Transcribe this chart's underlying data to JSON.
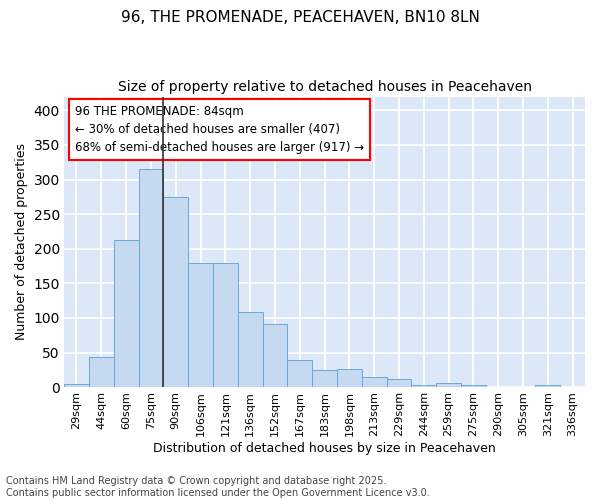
{
  "title": "96, THE PROMENADE, PEACEHAVEN, BN10 8LN",
  "subtitle": "Size of property relative to detached houses in Peacehaven",
  "xlabel": "Distribution of detached houses by size in Peacehaven",
  "ylabel": "Number of detached properties",
  "categories": [
    "29sqm",
    "44sqm",
    "60sqm",
    "75sqm",
    "90sqm",
    "106sqm",
    "121sqm",
    "136sqm",
    "152sqm",
    "167sqm",
    "183sqm",
    "198sqm",
    "213sqm",
    "229sqm",
    "244sqm",
    "259sqm",
    "275sqm",
    "290sqm",
    "305sqm",
    "321sqm",
    "336sqm"
  ],
  "values": [
    4,
    44,
    212,
    316,
    275,
    180,
    180,
    109,
    91,
    39,
    25,
    26,
    14,
    12,
    3,
    6,
    3,
    0,
    0,
    3,
    0
  ],
  "bar_color": "#c5d9f0",
  "bar_edge_color": "#6aaad4",
  "annotation_text": "96 THE PROMENADE: 84sqm\n← 30% of detached houses are smaller (407)\n68% of semi-detached houses are larger (917) →",
  "annotation_box_color": "white",
  "annotation_box_edge_color": "red",
  "vline_x_index": 3,
  "fig_bg_color": "#ffffff",
  "plot_bg_color": "#dce8f8",
  "grid_color": "#ffffff",
  "ylim": [
    0,
    420
  ],
  "yticks": [
    0,
    50,
    100,
    150,
    200,
    250,
    300,
    350,
    400
  ],
  "footer_line1": "Contains HM Land Registry data © Crown copyright and database right 2025.",
  "footer_line2": "Contains public sector information licensed under the Open Government Licence v3.0.",
  "title_fontsize": 11,
  "subtitle_fontsize": 10,
  "axis_label_fontsize": 9,
  "tick_fontsize": 8,
  "annotation_fontsize": 8.5,
  "footer_fontsize": 7
}
